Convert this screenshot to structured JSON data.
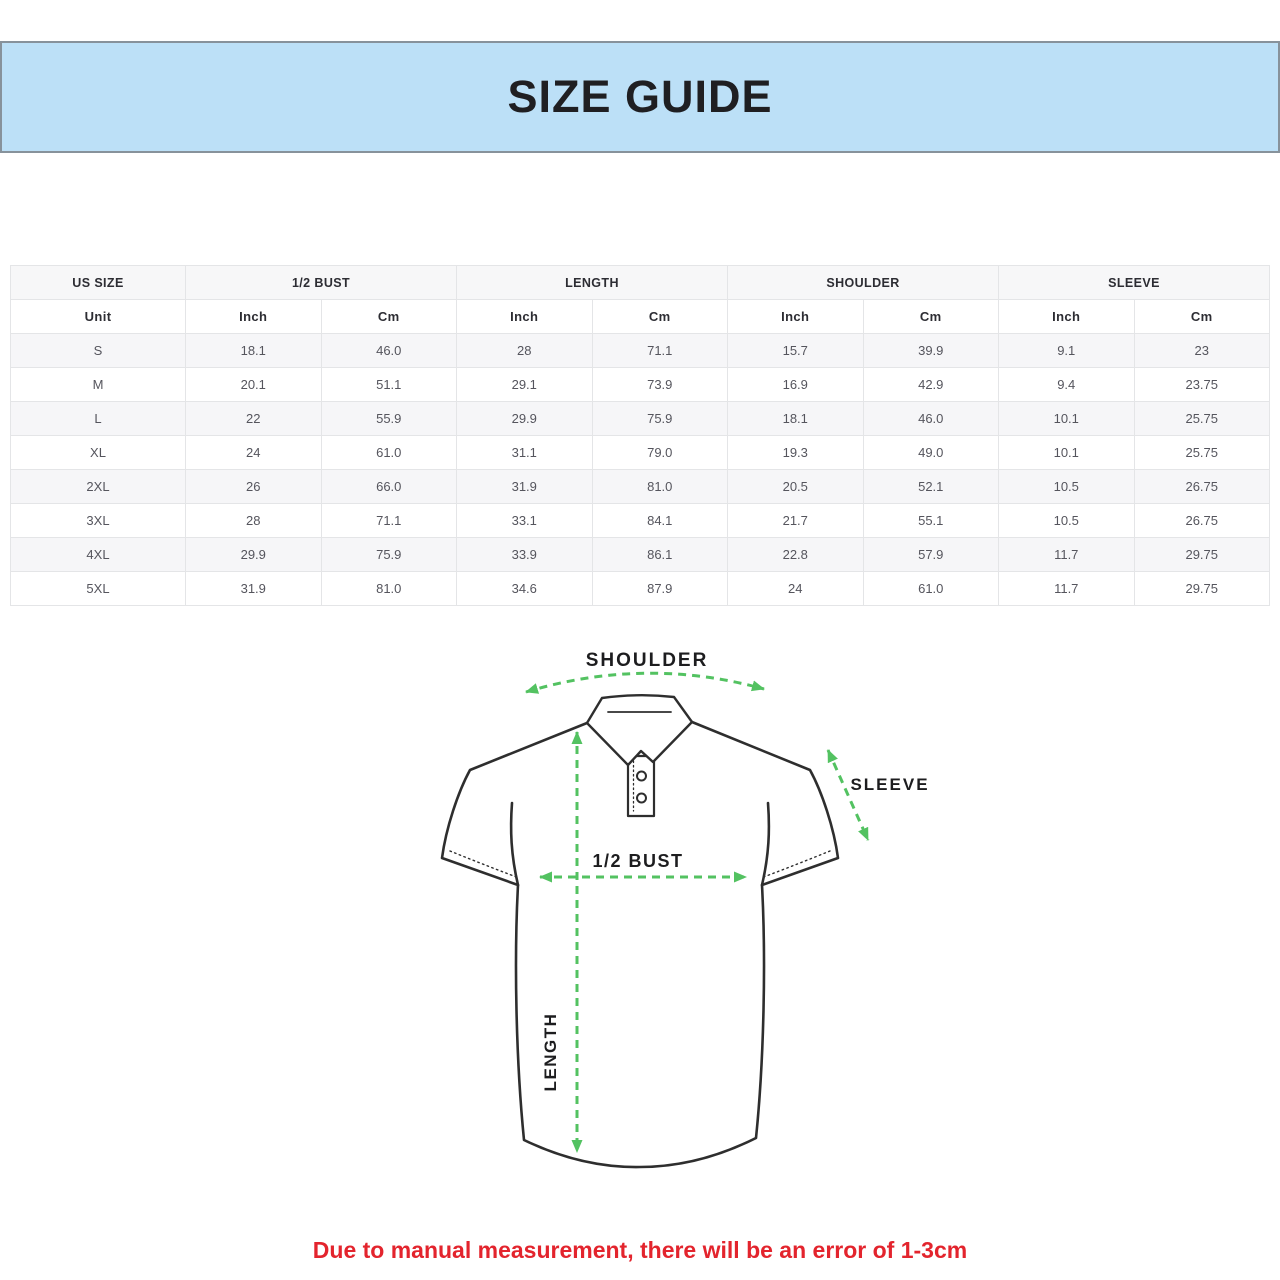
{
  "banner": {
    "title": "SIZE GUIDE",
    "background_color": "#bce0f7",
    "border_color": "#87929b"
  },
  "table": {
    "group_headers": [
      {
        "label": "US SIZE",
        "span": 1
      },
      {
        "label": "1/2 BUST",
        "span": 2
      },
      {
        "label": "LENGTH",
        "span": 2
      },
      {
        "label": "SHOULDER",
        "span": 2
      },
      {
        "label": "SLEEVE",
        "span": 2
      }
    ],
    "unit_row": [
      "Unit",
      "Inch",
      "Cm",
      "Inch",
      "Cm",
      "Inch",
      "Cm",
      "Inch",
      "Cm"
    ],
    "rows": [
      [
        "S",
        "18.1",
        "46.0",
        "28",
        "71.1",
        "15.7",
        "39.9",
        "9.1",
        "23"
      ],
      [
        "M",
        "20.1",
        "51.1",
        "29.1",
        "73.9",
        "16.9",
        "42.9",
        "9.4",
        "23.75"
      ],
      [
        "L",
        "22",
        "55.9",
        "29.9",
        "75.9",
        "18.1",
        "46.0",
        "10.1",
        "25.75"
      ],
      [
        "XL",
        "24",
        "61.0",
        "31.1",
        "79.0",
        "19.3",
        "49.0",
        "10.1",
        "25.75"
      ],
      [
        "2XL",
        "26",
        "66.0",
        "31.9",
        "81.0",
        "20.5",
        "52.1",
        "10.5",
        "26.75"
      ],
      [
        "3XL",
        "28",
        "71.1",
        "33.1",
        "84.1",
        "21.7",
        "55.1",
        "10.5",
        "26.75"
      ],
      [
        "4XL",
        "29.9",
        "75.9",
        "33.9",
        "86.1",
        "22.8",
        "57.9",
        "11.7",
        "29.75"
      ],
      [
        "5XL",
        "31.9",
        "81.0",
        "34.6",
        "87.9",
        "24",
        "61.0",
        "11.7",
        "29.75"
      ]
    ]
  },
  "diagram": {
    "labels": {
      "shoulder": "SHOULDER",
      "sleeve": "SLEEVE",
      "bust": "1/2 BUST",
      "length": "LENGTH"
    },
    "arrow_color": "#53c261",
    "outline_color": "#2e2e2e"
  },
  "note": {
    "text": "Due to manual measurement, there will be an error of 1-3cm",
    "color": "#e3242d"
  }
}
